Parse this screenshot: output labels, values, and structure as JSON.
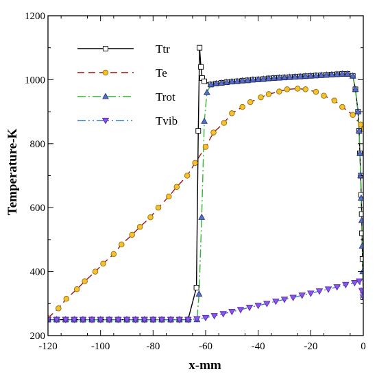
{
  "chart_data": {
    "type": "line",
    "xlabel": "x-mm",
    "ylabel": "Temperature-K",
    "xlim": [
      -120,
      0
    ],
    "ylim": [
      200,
      1200
    ],
    "xticks": [
      -120,
      -100,
      -80,
      -60,
      -40,
      -20,
      0
    ],
    "yticks": [
      200,
      400,
      600,
      800,
      1000,
      1200
    ],
    "grid": false,
    "legend_position": "top-left",
    "series": [
      {
        "name": "Ttr",
        "color": "#000000",
        "dash": "solid",
        "marker": "square",
        "marker_fill": "#ffffff",
        "marker_stroke": "#000000",
        "x": [
          -120,
          -116.7,
          -113.3,
          -110,
          -106.7,
          -103.3,
          -100,
          -96.7,
          -93.3,
          -90,
          -86.7,
          -83.3,
          -80,
          -76.7,
          -73.3,
          -70,
          -66.7,
          -63.5,
          -62.8,
          -62.3,
          -61.8,
          -61.3,
          -60.5,
          -58,
          -56,
          -54,
          -52,
          -50,
          -48,
          -46,
          -44,
          -42,
          -40,
          -38,
          -36,
          -34,
          -32,
          -30,
          -28,
          -26,
          -24,
          -22,
          -20,
          -18,
          -16,
          -14,
          -12,
          -10,
          -8,
          -6,
          -4,
          -3,
          -2,
          -1.6,
          -1.3,
          -1,
          -0.8,
          -0.6,
          -0.5,
          -0.3,
          0
        ],
        "y": [
          250,
          250,
          250,
          250,
          250,
          250,
          250,
          250,
          250,
          250,
          250,
          250,
          250,
          250,
          250,
          250,
          250,
          350,
          840,
          1100,
          1040,
          1005,
          995,
          985,
          988,
          990,
          992,
          994,
          995,
          997,
          998,
          1000,
          1001,
          1002,
          1004,
          1005,
          1006,
          1007,
          1008,
          1009,
          1010,
          1011,
          1012,
          1013,
          1014,
          1015,
          1016,
          1017,
          1018,
          1018,
          1012,
          970,
          900,
          840,
          770,
          700,
          640,
          580,
          520,
          440,
          320
        ]
      },
      {
        "name": "Te",
        "color": "#a01010",
        "dash": "10,6",
        "marker": "circle",
        "marker_fill": "#f2c230",
        "marker_stroke": "#9b6a00",
        "x": [
          -120,
          -116,
          -113,
          -109,
          -106,
          -102,
          -99,
          -95,
          -92,
          -88,
          -85,
          -81,
          -78,
          -74,
          -71,
          -67,
          -64,
          -60,
          -57,
          -53,
          -50,
          -46,
          -43,
          -39,
          -36,
          -32,
          -29,
          -25,
          -22,
          -18,
          -15,
          -11,
          -8,
          -4,
          -1,
          0
        ],
        "y": [
          255,
          285,
          315,
          345,
          370,
          400,
          425,
          455,
          485,
          515,
          540,
          570,
          600,
          635,
          665,
          700,
          740,
          790,
          835,
          865,
          895,
          915,
          930,
          945,
          955,
          963,
          970,
          972,
          970,
          962,
          950,
          935,
          915,
          890,
          860,
          845
        ]
      },
      {
        "name": "Trot",
        "color": "#2eb82e",
        "dash": "12,4,2,4",
        "marker": "triangle",
        "marker_fill": "#5a6ebe",
        "marker_stroke": "#2a3a8e",
        "x": [
          -120,
          -116.7,
          -113.3,
          -110,
          -106.7,
          -103.3,
          -100,
          -96.7,
          -93.3,
          -90,
          -86.7,
          -83.3,
          -80,
          -76.7,
          -73.3,
          -70,
          -66.7,
          -63.3,
          -62.5,
          -61.5,
          -60.5,
          -59.5,
          -58,
          -56,
          -54,
          -52,
          -50,
          -48,
          -46,
          -44,
          -42,
          -40,
          -38,
          -36,
          -34,
          -32,
          -30,
          -28,
          -26,
          -24,
          -22,
          -20,
          -18,
          -16,
          -14,
          -12,
          -10,
          -8,
          -6,
          -4,
          -3,
          -2,
          -1.6,
          -1.3,
          -1,
          -0.8,
          -0.6,
          -0.4,
          -0.2,
          0
        ],
        "y": [
          250,
          250,
          250,
          250,
          250,
          250,
          250,
          250,
          250,
          250,
          250,
          250,
          250,
          250,
          250,
          250,
          250,
          250,
          330,
          570,
          870,
          960,
          985,
          988,
          990,
          992,
          994,
          995,
          997,
          998,
          1000,
          1001,
          1002,
          1004,
          1005,
          1006,
          1007,
          1008,
          1009,
          1010,
          1011,
          1012,
          1013,
          1014,
          1015,
          1016,
          1017,
          1018,
          1018,
          1012,
          970,
          900,
          840,
          770,
          700,
          630,
          560,
          480,
          400,
          340
        ]
      },
      {
        "name": "Tvib",
        "color": "#2b7bd6",
        "dash": "12,4,2,4,2,4",
        "marker": "triangle-down",
        "marker_fill": "#8b55e8",
        "marker_stroke": "#5a2ab0",
        "x": [
          -120,
          -116.7,
          -113.3,
          -110,
          -106.7,
          -103.3,
          -100,
          -96.7,
          -93.3,
          -90,
          -86.7,
          -83.3,
          -80,
          -76.7,
          -73.3,
          -70,
          -66.7,
          -63.3,
          -60,
          -56.7,
          -53.3,
          -50,
          -46.7,
          -43.3,
          -40,
          -36.7,
          -33.3,
          -30,
          -26.7,
          -23.3,
          -20,
          -16.7,
          -13.3,
          -10,
          -6.7,
          -3.3,
          -1.5,
          -0.5,
          0
        ],
        "y": [
          250,
          250,
          250,
          250,
          250,
          250,
          250,
          250,
          250,
          250,
          250,
          250,
          250,
          250,
          250,
          250,
          250,
          252,
          256,
          262,
          268,
          275,
          281,
          288,
          294,
          300,
          307,
          313,
          319,
          326,
          332,
          339,
          345,
          352,
          359,
          365,
          370,
          340,
          320
        ]
      }
    ]
  }
}
